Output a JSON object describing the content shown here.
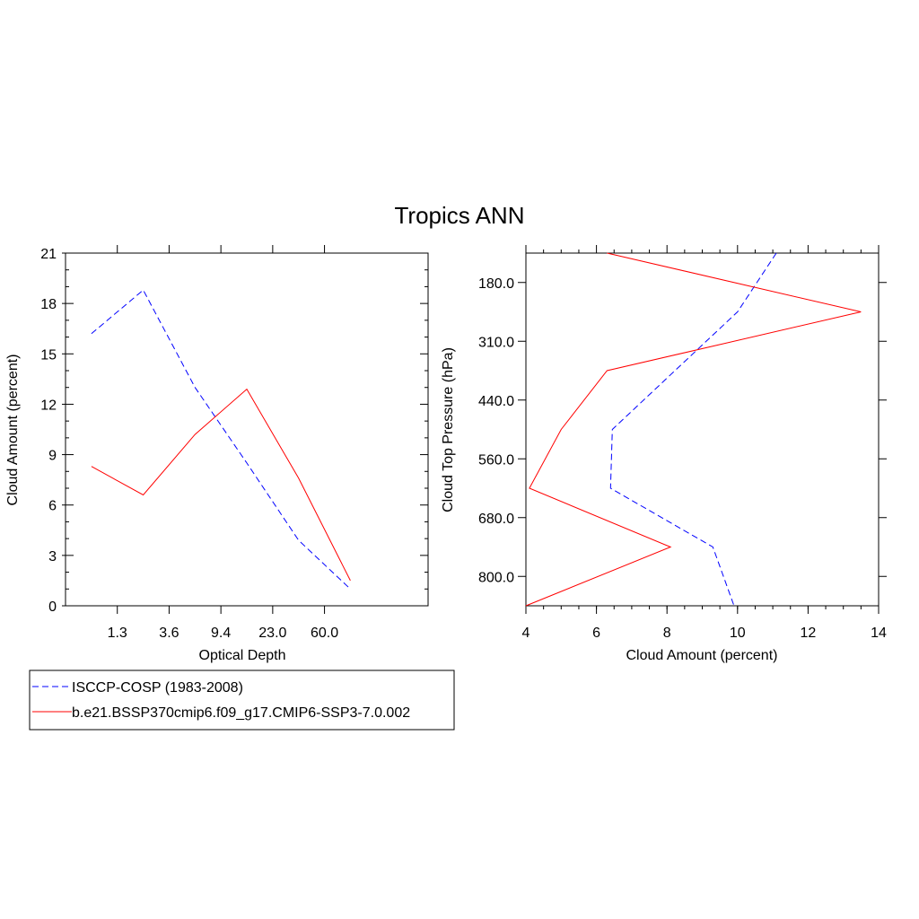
{
  "title": "Tropics ANN",
  "legend": {
    "placement": "bottom-left",
    "entries": [
      {
        "label": "ISCCP-COSP (1983-2008)",
        "color": "#0000ff",
        "dash": "dashed"
      },
      {
        "label": "b.e21.BSSP370cmip6.f09_g17.CMIP6-SSP3-7.0.002",
        "color": "#ff0000",
        "dash": "solid"
      }
    ]
  },
  "chart_data": [
    {
      "type": "line",
      "xlabel": "Optical Depth",
      "ylabel": "Cloud Amount (percent)",
      "x_tick_labels": [
        "1.3",
        "3.6",
        "9.4",
        "23.0",
        "60.0"
      ],
      "x_bins": 7,
      "ylim": [
        0,
        21
      ],
      "y_ticks": [
        0,
        3,
        6,
        9,
        12,
        15,
        18,
        21
      ],
      "y_tick_labels": [
        "0",
        "3",
        "6",
        "9",
        "12",
        "15",
        "18",
        "21"
      ],
      "grid": false,
      "series": [
        {
          "name": "ISCCP-COSP (1983-2008)",
          "color": "#0000ff",
          "dash": "dashed",
          "x": [
            0,
            1,
            2,
            3,
            4,
            5
          ],
          "values": [
            16.2,
            18.8,
            13.0,
            8.5,
            3.9,
            1.0
          ]
        },
        {
          "name": "b.e21.BSSP370cmip6.f09_g17.CMIP6-SSP3-7.0.002",
          "color": "#ff0000",
          "dash": "solid",
          "x": [
            0,
            1,
            2,
            3,
            4,
            5
          ],
          "values": [
            8.3,
            6.6,
            10.2,
            12.9,
            7.6,
            1.5
          ]
        }
      ]
    },
    {
      "type": "line",
      "xlabel": "Cloud Amount (percent)",
      "ylabel": "Cloud Top Pressure (hPa)",
      "xlim": [
        4,
        14
      ],
      "x_ticks": [
        4,
        6,
        8,
        10,
        12,
        14
      ],
      "x_tick_labels": [
        "4",
        "6",
        "8",
        "10",
        "12",
        "14"
      ],
      "y_tick_labels": [
        "180.0",
        "310.0",
        "440.0",
        "560.0",
        "680.0",
        "800.0"
      ],
      "y_bins": 6,
      "grid": false,
      "series": [
        {
          "name": "ISCCP-COSP (1983-2008)",
          "color": "#0000ff",
          "dash": "dashed",
          "x": [
            11.1,
            10.0,
            6.45,
            6.4,
            9.3,
            9.9
          ],
          "y_bin": [
            0,
            1,
            3,
            4,
            5,
            6
          ]
        },
        {
          "name": "b.e21.BSSP370cmip6.f09_g17.CMIP6-SSP3-7.0.002",
          "color": "#ff0000",
          "dash": "solid",
          "x": [
            6.3,
            13.5,
            6.3,
            5.0,
            4.1,
            8.1,
            4.0
          ],
          "y_bin": [
            0,
            1,
            2,
            3,
            4,
            5,
            6
          ]
        }
      ]
    }
  ]
}
